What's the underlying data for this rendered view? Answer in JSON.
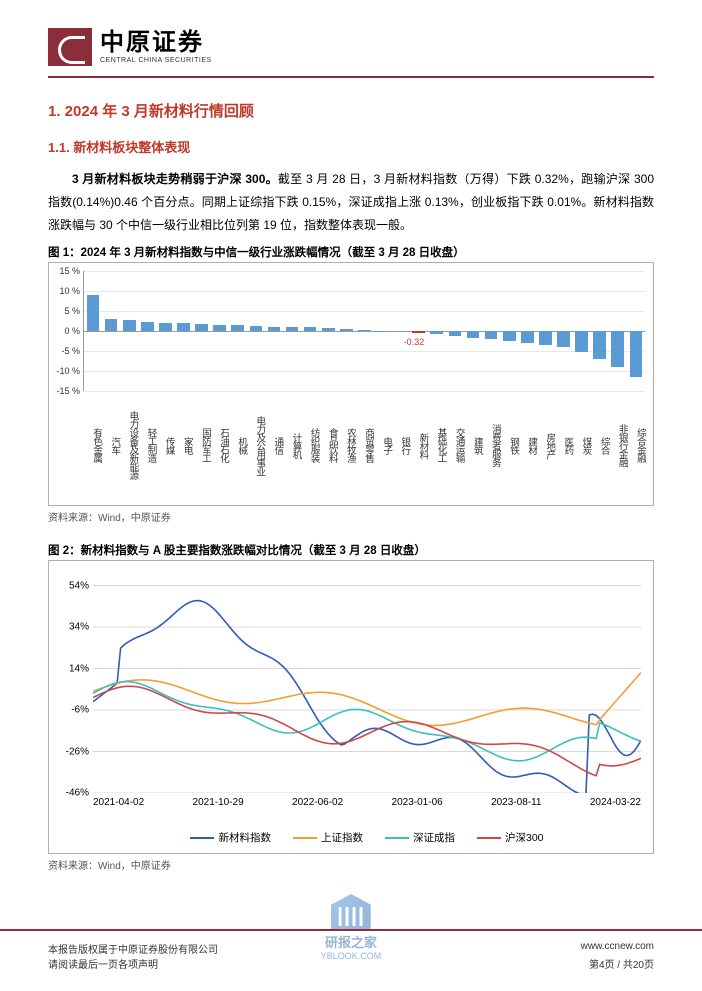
{
  "header": {
    "brand": "中原证券",
    "brand_en": "CENTRAL CHINA SECURITIES"
  },
  "section1_title": "1. 2024 年 3 月新材料行情回顾",
  "section11_title": "1.1. 新材料板块整体表现",
  "para1_bold": "3 月新材料板块走势稍弱于沪深 300。",
  "para1_rest": "截至 3 月 28 日，3 月新材料指数（万得）下跌 0.32%，跑输沪深 300 指数(0.14%)0.46 个百分点。同期上证综指下跌 0.15%，深证成指上涨 0.13%，创业板指下跌 0.01%。新材料指数涨跌幅与 30 个中信一级行业相比位列第 19 位，指数整体表现一般。",
  "fig1_title": "图 1：2024 年 3 月新材料指数与中信一级行业涨跌幅情况（截至 3 月 28 日收盘）",
  "fig1_source": "资料来源：Wind，中原证券",
  "fig2_title": "图 2：新材料指数与 A 股主要指数涨跌幅对比情况（截至 3 月 28 日收盘）",
  "fig2_source": "资料来源：Wind，中原证券",
  "chart1": {
    "type": "bar",
    "ylim": [
      -15,
      15
    ],
    "yticks": [
      15,
      10,
      5,
      0,
      -5,
      -10,
      -15
    ],
    "ytick_suffix": " %",
    "bar_color": "#5b9bd5",
    "grid_color": "#e8e8e8",
    "highlight_value": -0.32,
    "highlight_label": "-0.32",
    "highlight_color": "#c0392b",
    "categories": [
      "有色金属",
      "汽车",
      "电力设备及新能源",
      "轻工制造",
      "传媒",
      "家电",
      "国防军工",
      "石油石化",
      "机械",
      "电力及公用事业",
      "通信",
      "计算机",
      "纺织服装",
      "食品饮料",
      "农林牧渔",
      "商贸零售",
      "电子",
      "银行",
      "新材料",
      "基础化工",
      "交通运输",
      "建筑",
      "消费者服务",
      "钢铁",
      "建材",
      "房地产",
      "医药",
      "煤炭",
      "综合",
      "非银行金融",
      "综合金融"
    ],
    "values": [
      9.2,
      3.1,
      2.9,
      2.4,
      2.2,
      2.0,
      1.9,
      1.7,
      1.5,
      1.4,
      1.2,
      1.1,
      1.0,
      0.9,
      0.6,
      0.4,
      0.2,
      0.0,
      -0.32,
      -0.7,
      -1.1,
      -1.6,
      -2.0,
      -2.4,
      -3.0,
      -3.4,
      -4.0,
      -5.2,
      -6.8,
      -8.8,
      -11.5
    ]
  },
  "chart2": {
    "type": "line",
    "ylim": [
      -46,
      60
    ],
    "yticks": [
      54,
      34,
      14,
      -6,
      -26,
      -46
    ],
    "xticks": [
      "2021-04-02",
      "2021-10-29",
      "2022-06-02",
      "2023-01-06",
      "2023-08-11",
      "2024-03-22"
    ],
    "grid_color": "#d9d9d9",
    "series": [
      {
        "name": "新材料指数",
        "color": "#2e5cb8"
      },
      {
        "name": "上证指数",
        "color": "#f0a030"
      },
      {
        "name": "深证成指",
        "color": "#3cbfbf"
      },
      {
        "name": "沪深300",
        "color": "#d04848"
      }
    ]
  },
  "footer": {
    "copyright": "本报告版权属于中原证券股份有限公司",
    "website": "www.ccnew.com",
    "disclaimer": "请阅读最后一页各项声明",
    "page": "第4页 / 共20页"
  },
  "watermark": {
    "name": "研报之家",
    "url": "YBLOOK.COM"
  }
}
